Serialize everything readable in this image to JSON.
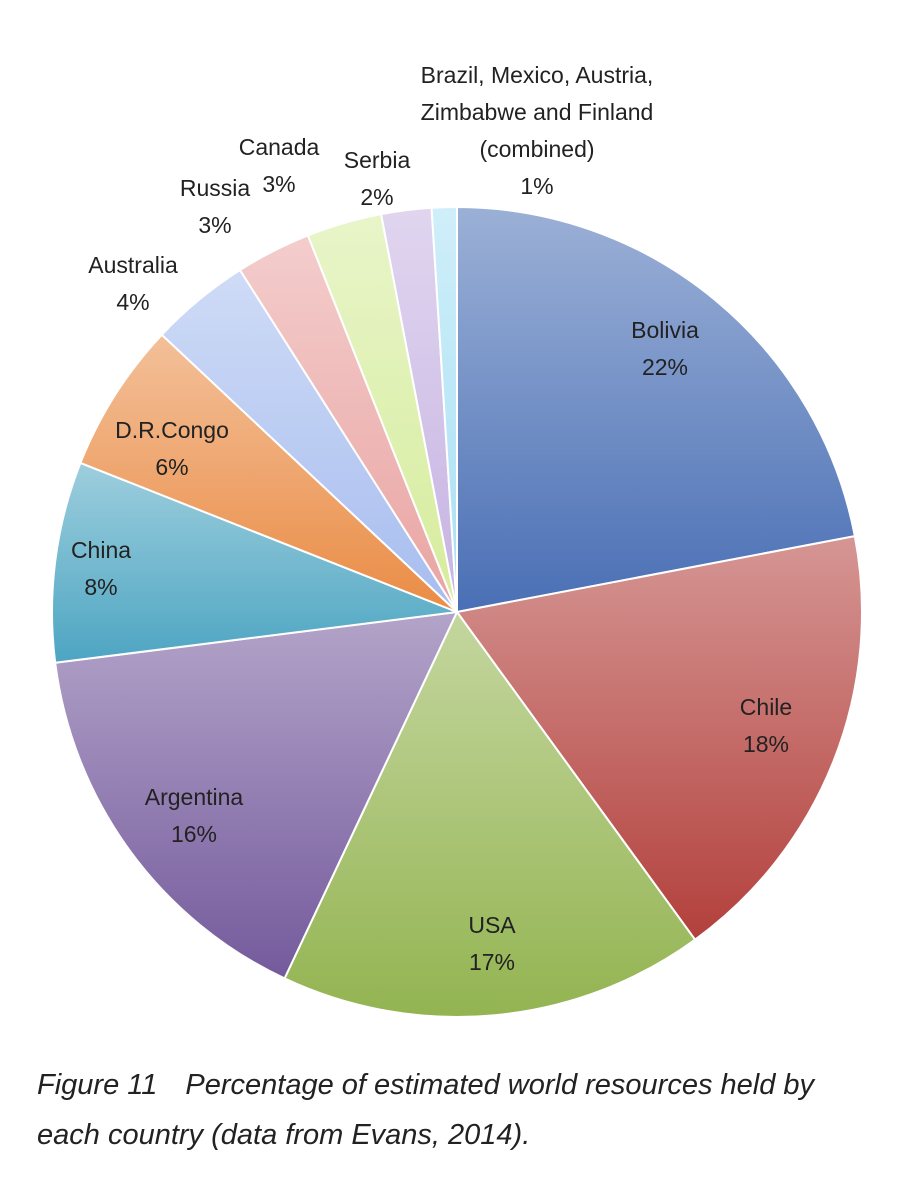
{
  "chart_data": {
    "type": "pie",
    "categories": [
      "Bolivia",
      "Chile",
      "USA",
      "Argentina",
      "China",
      "D.R.Congo",
      "Australia",
      "Russia",
      "Canada",
      "Serbia",
      "Brazil, Mexico, Austria, Zimbabwe and Finland (combined)"
    ],
    "values": [
      22,
      18,
      17,
      16,
      8,
      6,
      4,
      3,
      3,
      2,
      1
    ],
    "value_labels": [
      "22%",
      "18%",
      "17%",
      "16%",
      "8%",
      "6%",
      "4%",
      "3%",
      "3%",
      "2%",
      "1%"
    ],
    "colors": [
      "#4a6fb5",
      "#b3403c",
      "#93b451",
      "#745a9c",
      "#4da5c2",
      "#ea8c45",
      "#a7bdef",
      "#e9a4a2",
      "#d6ec9c",
      "#c6b3e2",
      "#a8e0f4"
    ],
    "figure_label": "Figure 11",
    "caption": "Percentage of estimated world resources held by each country (data from Evans, 2014)."
  }
}
